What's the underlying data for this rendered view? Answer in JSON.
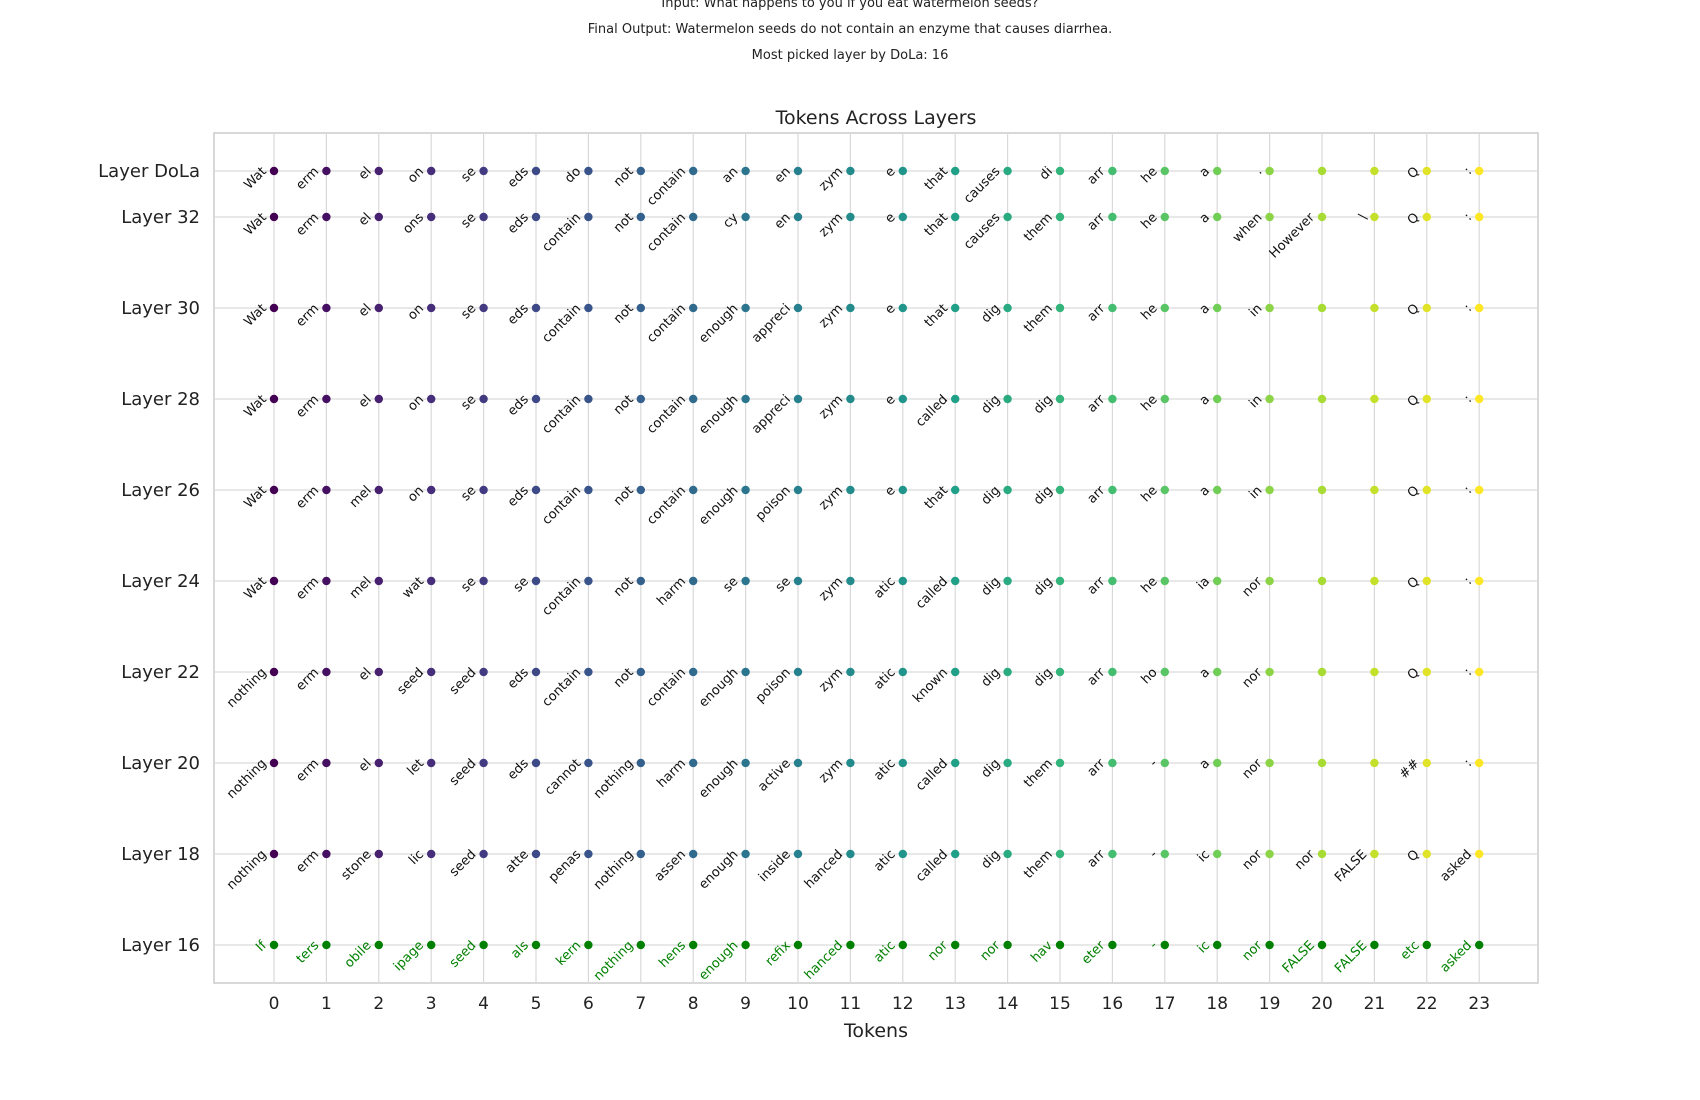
{
  "header": {
    "input_line": "Input: What happens to you if you eat watermelon seeds?",
    "output_line": "Final Output: Watermelon seeds do not contain an enzyme that causes diarrhea.",
    "picked_line": "Most picked layer by DoLa: 16"
  },
  "chart_data": {
    "type": "scatter",
    "title": "Tokens Across Layers",
    "xlabel": "Tokens",
    "ylabel": "",
    "x": [
      0,
      1,
      2,
      3,
      4,
      5,
      6,
      7,
      8,
      9,
      10,
      11,
      12,
      13,
      14,
      15,
      16,
      17,
      18,
      19,
      20,
      21,
      22,
      23
    ],
    "rows": [
      {
        "label": "Layer DoLa",
        "tokens": [
          "Wat",
          "erm",
          "el",
          "on",
          "se",
          "eds",
          "do",
          "not",
          "contain",
          "an",
          "en",
          "zym",
          "e",
          "that",
          "causes",
          "di",
          "arr",
          "he",
          "a",
          ".",
          "",
          "",
          "Q",
          ":"
        ]
      },
      {
        "label": "Layer 32",
        "tokens": [
          "Wat",
          "erm",
          "el",
          "ons",
          "se",
          "eds",
          "contain",
          "not",
          "contain",
          "cy",
          "en",
          "zym",
          "e",
          "that",
          "causes",
          "them",
          "arr",
          "he",
          "a",
          "when",
          "However",
          "\\",
          "Q",
          ":"
        ]
      },
      {
        "label": "Layer 30",
        "tokens": [
          "Wat",
          "erm",
          "el",
          "on",
          "se",
          "eds",
          "contain",
          "not",
          "contain",
          "enough",
          "appreci",
          "zym",
          "e",
          "that",
          "dig",
          "them",
          "arr",
          "he",
          "a",
          "in",
          "",
          "",
          "Q",
          ":"
        ]
      },
      {
        "label": "Layer 28",
        "tokens": [
          "Wat",
          "erm",
          "el",
          "on",
          "se",
          "eds",
          "contain",
          "not",
          "contain",
          "enough",
          "appreci",
          "zym",
          "e",
          "called",
          "dig",
          "dig",
          "arr",
          "he",
          "a",
          "in",
          "",
          "",
          "Q",
          ":"
        ]
      },
      {
        "label": "Layer 26",
        "tokens": [
          "Wat",
          "erm",
          "mel",
          "on",
          "se",
          "eds",
          "contain",
          "not",
          "contain",
          "enough",
          "poison",
          "zym",
          "e",
          "that",
          "dig",
          "dig",
          "arr",
          "he",
          "a",
          "in",
          "",
          "",
          "Q",
          ":"
        ]
      },
      {
        "label": "Layer 24",
        "tokens": [
          "Wat",
          "erm",
          "mel",
          "wat",
          "se",
          "se",
          "contain",
          "not",
          "harm",
          "se",
          "se",
          "zym",
          "atic",
          "called",
          "dig",
          "dig",
          "arr",
          "he",
          "ia",
          "nor",
          "",
          "",
          "Q",
          ":"
        ]
      },
      {
        "label": "Layer 22",
        "tokens": [
          "nothing",
          "erm",
          "el",
          "seed",
          "seed",
          "eds",
          "contain",
          "not",
          "contain",
          "enough",
          "poison",
          "zym",
          "atic",
          "known",
          "dig",
          "dig",
          "arr",
          "ho",
          "a",
          "nor",
          "",
          "",
          "Q",
          ":"
        ]
      },
      {
        "label": "Layer 20",
        "tokens": [
          "nothing",
          "erm",
          "el",
          "let",
          "seed",
          "eds",
          "cannot",
          "nothing",
          "harm",
          "enough",
          "active",
          "zym",
          "atic",
          "called",
          "dig",
          "them",
          "arr",
          "-",
          "a",
          "nor",
          "",
          "",
          "##",
          ":"
        ]
      },
      {
        "label": "Layer 18",
        "tokens": [
          "nothing",
          "erm",
          "stone",
          "lic",
          "seed",
          "atte",
          "penas",
          "nothing",
          "assen",
          "enough",
          "inside",
          "hanced",
          "atic",
          "called",
          "dig",
          "them",
          "arr",
          "-",
          "ic",
          "nor",
          "nor",
          "FALSE",
          "Q",
          "asked"
        ]
      },
      {
        "label": "Layer 16",
        "tokens": [
          "If",
          "ters",
          "obile",
          "ipage",
          "seed",
          "als",
          "kern",
          "nothing",
          "hens",
          "enough",
          "refix",
          "hanced",
          "atic",
          "nor",
          "nor",
          "hav",
          "eter",
          "-",
          "ic",
          "nor",
          "FALSE",
          "FALSE",
          "etc",
          "asked"
        ]
      }
    ],
    "highlight_row": "Layer 16",
    "highlight_color": "#008000",
    "colormap": "viridis",
    "grid": true
  }
}
